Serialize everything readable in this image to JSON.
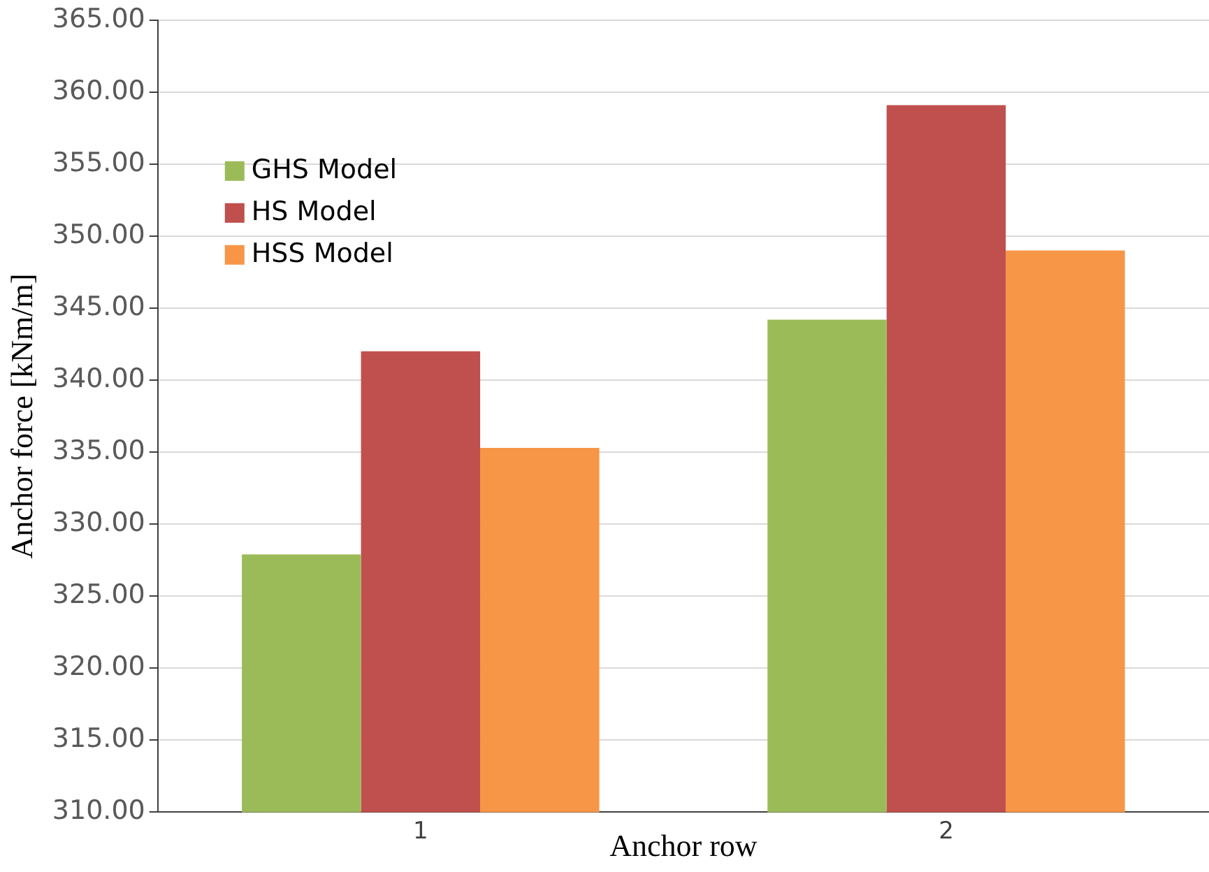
{
  "chart_data": {
    "type": "bar",
    "xlabel": "Anchor row",
    "ylabel": "Anchor force [kNm/m]",
    "categories": [
      "1",
      "2"
    ],
    "series": [
      {
        "name": "GHS Model",
        "color": "#9bbb59",
        "values": [
          327.9,
          344.2
        ]
      },
      {
        "name": "HS Model",
        "color": "#c0504d",
        "values": [
          342.0,
          359.1
        ]
      },
      {
        "name": "HSS Model",
        "color": "#f79646",
        "values": [
          335.3,
          349.0
        ]
      }
    ],
    "ylim": [
      310,
      365
    ],
    "yticks": [
      {
        "value": 310,
        "label": "310.00"
      },
      {
        "value": 315,
        "label": "315.00"
      },
      {
        "value": 320,
        "label": "320.00"
      },
      {
        "value": 325,
        "label": "325.00"
      },
      {
        "value": 330,
        "label": "330.00"
      },
      {
        "value": 335,
        "label": "335.00"
      },
      {
        "value": 340,
        "label": "340.00"
      },
      {
        "value": 345,
        "label": "345.00"
      },
      {
        "value": 350,
        "label": "350.00"
      },
      {
        "value": 355,
        "label": "355.00"
      },
      {
        "value": 360,
        "label": "360.00"
      },
      {
        "value": 365,
        "label": "365.00"
      }
    ],
    "grid": "y",
    "legend": "top left"
  }
}
